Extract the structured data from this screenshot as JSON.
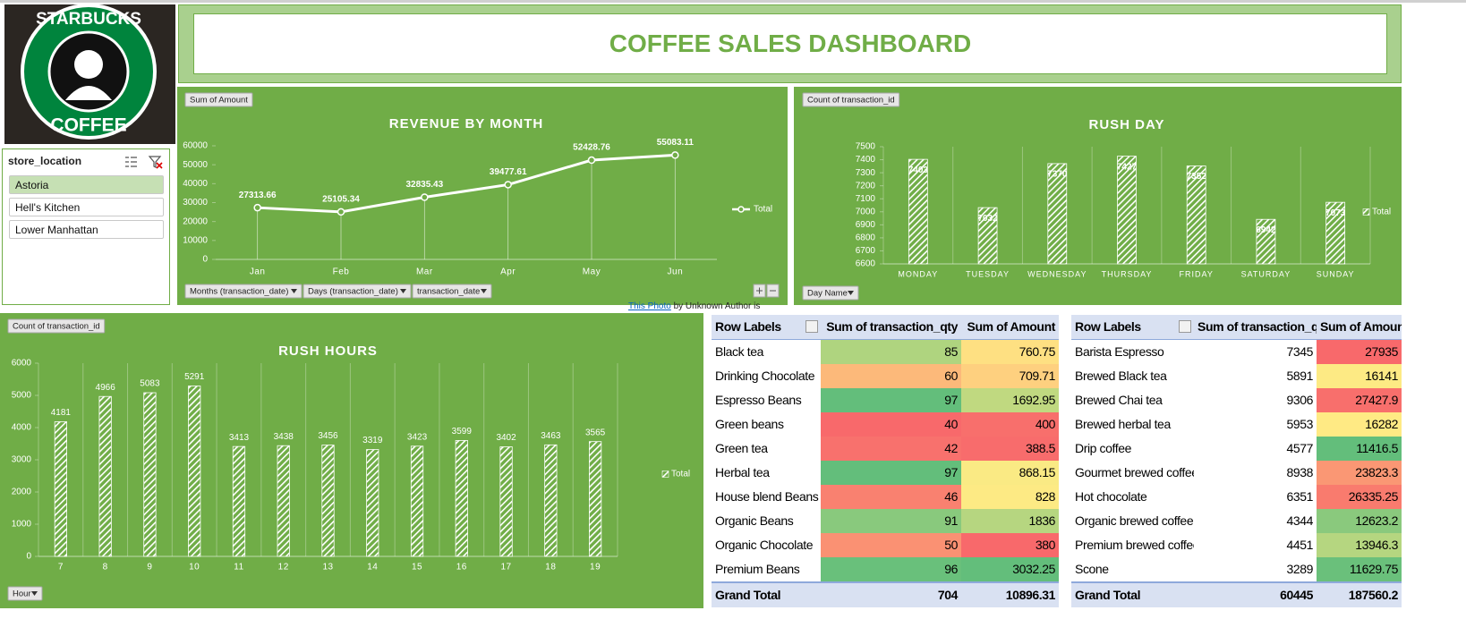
{
  "logo": {
    "top": "STARBUCKS",
    "bottom": "COFFEE"
  },
  "header": {
    "title": "COFFEE SALES DASHBOARD"
  },
  "slicer": {
    "title": "store_location",
    "items": [
      "Astoria",
      "Hell's Kitchen",
      "Lower Manhattan"
    ],
    "selected_index": 0
  },
  "attribution": {
    "link": "This Photo",
    "text": "by Unknown Author is"
  },
  "chart_data": [
    {
      "type": "line",
      "title": "REVENUE BY MONTH",
      "field_buttons": [
        "Sum of Amount"
      ],
      "filter_buttons": [
        "Months (transaction_date)",
        "Days (transaction_date)",
        "transaction_date"
      ],
      "categories": [
        "Jan",
        "Feb",
        "Mar",
        "Apr",
        "May",
        "Jun"
      ],
      "series": [
        {
          "name": "Total",
          "color": "#ffffff",
          "values": [
            27313.66,
            25105.34,
            32835.43,
            39477.61,
            52428.76,
            55083.11
          ]
        }
      ],
      "ylim": [
        0,
        60000
      ],
      "yticks": [
        0,
        10000,
        20000,
        30000,
        40000,
        50000,
        60000
      ],
      "legend": "right"
    },
    {
      "type": "bar",
      "title": "RUSH DAY",
      "field_buttons": [
        "Count of transaction_id"
      ],
      "filter_buttons": [
        "Day Name"
      ],
      "categories": [
        "MONDAY",
        "TUESDAY",
        "WEDNESDAY",
        "THURSDAY",
        "FRIDAY",
        "SATURDAY",
        "SUNDAY"
      ],
      "series": [
        {
          "name": "Total",
          "color": "#ffffff",
          "values": [
            7403,
            7032,
            7370,
            7427,
            7352,
            6942,
            7073
          ]
        }
      ],
      "ylim": [
        6600,
        7500
      ],
      "yticks": [
        6600,
        6700,
        6800,
        6900,
        7000,
        7100,
        7200,
        7300,
        7400,
        7500
      ],
      "legend": "right"
    },
    {
      "type": "bar",
      "title": "RUSH HOURS",
      "field_buttons": [
        "Count of transaction_id"
      ],
      "filter_buttons": [
        "Hour"
      ],
      "categories": [
        "7",
        "8",
        "9",
        "10",
        "11",
        "12",
        "13",
        "14",
        "15",
        "16",
        "17",
        "18",
        "19"
      ],
      "series": [
        {
          "name": "Total",
          "color": "#ffffff",
          "values": [
            4181,
            4966,
            5083,
            5291,
            3413,
            3438,
            3456,
            3319,
            3423,
            3599,
            3402,
            3463,
            3565
          ]
        }
      ],
      "ylim": [
        0,
        6000
      ],
      "yticks": [
        0,
        1000,
        2000,
        3000,
        4000,
        5000,
        6000
      ],
      "legend": "right"
    }
  ],
  "tables": [
    {
      "headers": [
        "Row Labels",
        "Sum of transaction_qty",
        "Sum of Amount"
      ],
      "rows": [
        [
          "Black tea",
          85,
          760.75
        ],
        [
          "Drinking Chocolate",
          60,
          709.71
        ],
        [
          "Espresso Beans",
          97,
          1692.95
        ],
        [
          "Green beans",
          40,
          400
        ],
        [
          "Green tea",
          42,
          388.5
        ],
        [
          "Herbal tea",
          97,
          868.15
        ],
        [
          "House blend Beans",
          46,
          828
        ],
        [
          "Organic Beans",
          91,
          1836
        ],
        [
          "Organic Chocolate",
          50,
          380
        ],
        [
          "Premium Beans",
          96,
          3032.25
        ]
      ],
      "total": [
        "Grand Total",
        704,
        10896.31
      ],
      "color_scale_columns": [
        1,
        2
      ],
      "scale_colors": [
        "#f8696b",
        "#ffeb84",
        "#63be7b"
      ]
    },
    {
      "headers": [
        "Row Labels",
        "Sum of transaction_qty",
        "Sum of Amount"
      ],
      "rows": [
        [
          "Barista Espresso",
          7345,
          27935
        ],
        [
          "Brewed Black tea",
          5891,
          16141
        ],
        [
          "Brewed Chai tea",
          9306,
          27427.9
        ],
        [
          "Brewed herbal tea",
          5953,
          16282
        ],
        [
          "Drip coffee",
          4577,
          11416.5
        ],
        [
          "Gourmet brewed coffee",
          8938,
          23823.3
        ],
        [
          "Hot chocolate",
          6351,
          26335.25
        ],
        [
          "Organic brewed coffee",
          4344,
          12623.2
        ],
        [
          "Premium brewed coffee",
          4451,
          13946.3
        ],
        [
          "Scone",
          3289,
          11629.75
        ]
      ],
      "total": [
        "Grand Total",
        60445,
        187560.2
      ],
      "color_scale_columns": [
        2
      ],
      "scale_colors": [
        "#63be7b",
        "#ffeb84",
        "#f8696b"
      ]
    }
  ]
}
